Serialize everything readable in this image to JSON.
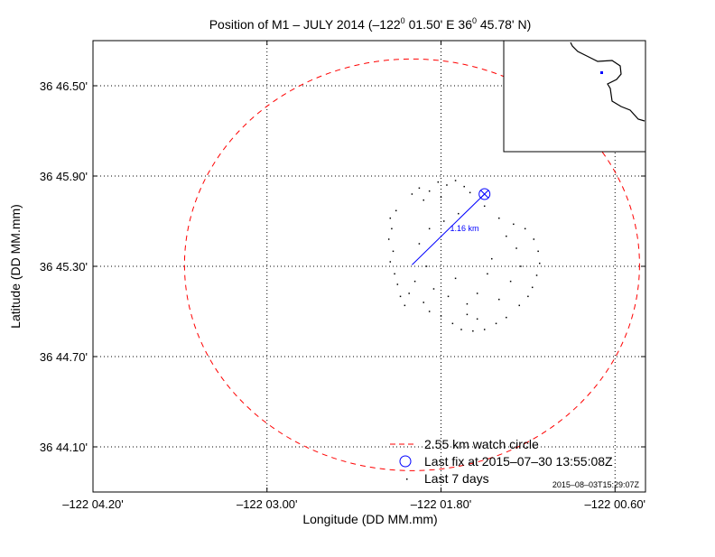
{
  "chart_data": {
    "type": "scatter",
    "title": "Position of M1 - JULY 2014 (-122° 01.50' E  36° 45.78' N)",
    "title_parts": {
      "pre": "Position of M1 – JULY 2014 (–122",
      "deg": "0",
      "mid": " 01.50' E  36",
      "post": " 45.78' N)"
    },
    "xlabel": "Longitude (DD MM.mm)",
    "ylabel": "Latitude (DD MM.mm)",
    "x_ticks": [
      {
        "value": 4.2,
        "label": "–122 04.20'"
      },
      {
        "value": 3.0,
        "label": "–122 03.00'"
      },
      {
        "value": 1.8,
        "label": "–122 01.80'"
      },
      {
        "value": 0.6,
        "label": "–122 00.60'"
      }
    ],
    "y_ticks": [
      {
        "value": 46.5,
        "label": "36 46.50'"
      },
      {
        "value": 45.9,
        "label": "36 45.90'"
      },
      {
        "value": 45.3,
        "label": "36 45.30'"
      },
      {
        "value": 44.7,
        "label": "36 44.70'"
      },
      {
        "value": 44.1,
        "label": "36 44.10'"
      }
    ],
    "x_units": "minutes west of -122°",
    "y_units": "minutes north of 36°",
    "xlim": [
      4.2,
      0.39
    ],
    "ylim": [
      43.8,
      46.8
    ],
    "grid": true,
    "watch_circle": {
      "center_lon": 2.0,
      "center_lat": 45.31,
      "radius_km": 2.55,
      "color": "#ff0000"
    },
    "last_fix": {
      "lon": 1.5,
      "lat": 45.78,
      "color": "#0000ff"
    },
    "distance_label": "1.16 km",
    "legend": {
      "placement": "bottom-right",
      "entries": [
        "2.55 km watch circle",
        "Last fix at 2015–07–30 13:55:08Z",
        "Last 7 days"
      ]
    },
    "timestamp": "2015–08–03T15:29:07Z",
    "points": [
      [
        2.15,
        45.62
      ],
      [
        2.14,
        45.55
      ],
      [
        2.16,
        45.48
      ],
      [
        2.13,
        45.4
      ],
      [
        2.15,
        45.33
      ],
      [
        2.12,
        45.25
      ],
      [
        2.1,
        45.18
      ],
      [
        2.08,
        45.1
      ],
      [
        2.05,
        45.04
      ],
      [
        2.11,
        45.67
      ],
      [
        2.0,
        45.78
      ],
      [
        1.95,
        45.82
      ],
      [
        1.88,
        45.8
      ],
      [
        1.82,
        45.86
      ],
      [
        1.76,
        45.84
      ],
      [
        1.7,
        45.87
      ],
      [
        1.64,
        45.83
      ],
      [
        1.6,
        45.79
      ],
      [
        1.92,
        45.74
      ],
      [
        1.8,
        45.76
      ],
      [
        1.4,
        45.62
      ],
      [
        1.3,
        45.58
      ],
      [
        1.22,
        45.55
      ],
      [
        1.16,
        45.48
      ],
      [
        1.13,
        45.4
      ],
      [
        1.12,
        45.32
      ],
      [
        1.14,
        45.24
      ],
      [
        1.17,
        45.16
      ],
      [
        1.2,
        45.1
      ],
      [
        1.26,
        45.04
      ],
      [
        1.35,
        45.5
      ],
      [
        1.28,
        45.42
      ],
      [
        1.25,
        45.3
      ],
      [
        1.32,
        45.2
      ],
      [
        1.35,
        44.96
      ],
      [
        1.42,
        44.92
      ],
      [
        1.5,
        44.88
      ],
      [
        1.58,
        44.87
      ],
      [
        1.66,
        44.88
      ],
      [
        1.72,
        44.92
      ],
      [
        1.8,
        44.97
      ],
      [
        1.88,
        45.0
      ],
      [
        1.55,
        44.95
      ],
      [
        1.62,
        44.98
      ],
      [
        1.98,
        45.2
      ],
      [
        1.85,
        45.15
      ],
      [
        1.75,
        45.1
      ],
      [
        1.7,
        45.22
      ],
      [
        1.9,
        45.3
      ],
      [
        1.95,
        45.45
      ],
      [
        1.88,
        45.55
      ],
      [
        1.78,
        45.6
      ],
      [
        1.68,
        45.65
      ],
      [
        1.5,
        45.7
      ],
      [
        1.45,
        45.35
      ],
      [
        1.55,
        45.12
      ],
      [
        1.62,
        45.05
      ],
      [
        1.4,
        45.08
      ],
      [
        1.48,
        45.25
      ],
      [
        2.02,
        45.12
      ],
      [
        1.92,
        45.06
      ]
    ]
  }
}
